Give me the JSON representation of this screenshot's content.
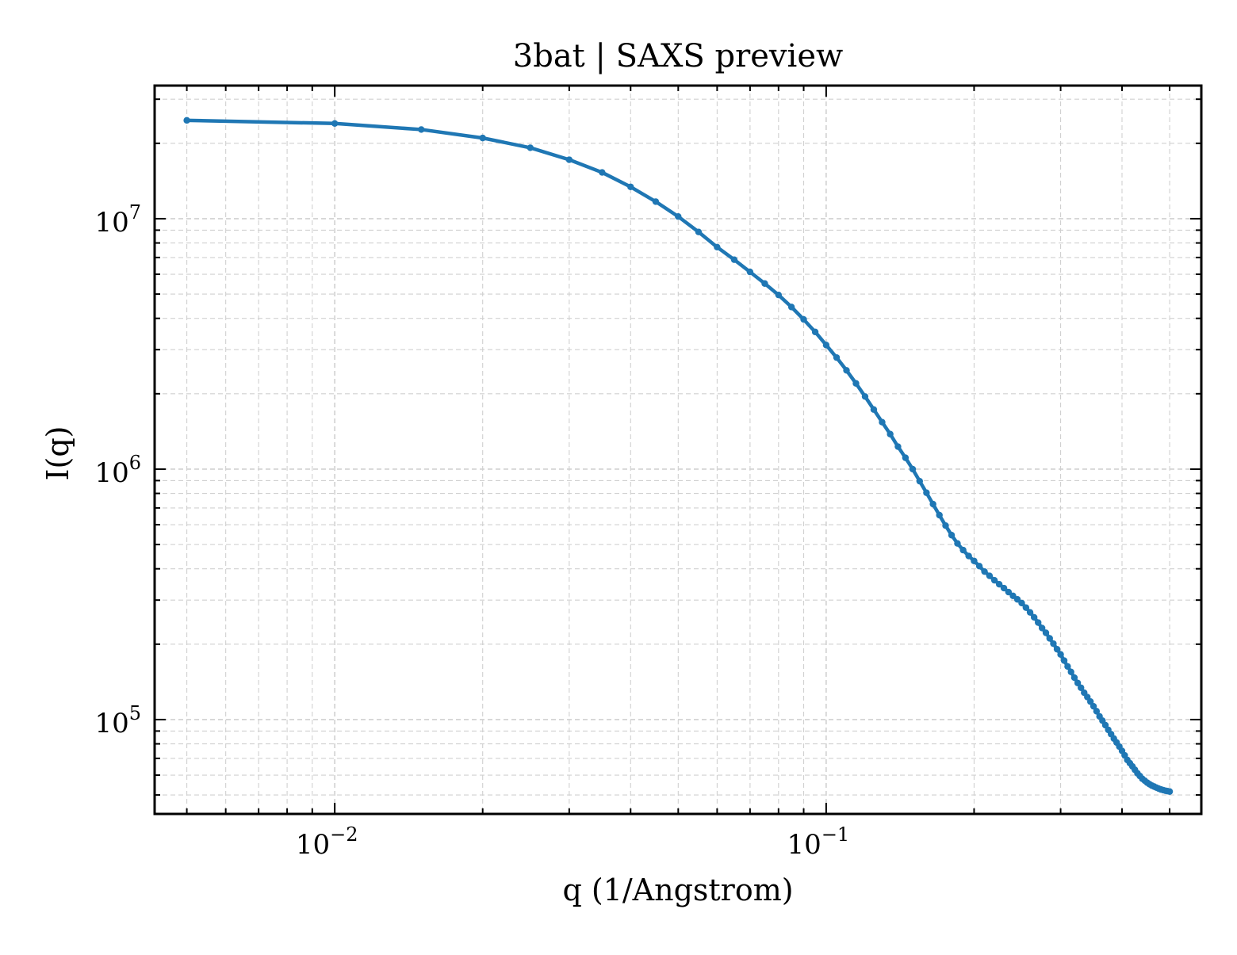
{
  "chart_data": {
    "type": "line",
    "title": "3bat | SAXS preview",
    "xlabel": "q (1/Angstrom)",
    "ylabel": "I(q)",
    "xscale": "log",
    "yscale": "log",
    "xlim": [
      0.0043,
      0.58
    ],
    "ylim": [
      42000,
      34000000
    ],
    "grid": true,
    "x_ticks": [
      {
        "value": 0.01,
        "base": "10",
        "exp": "−2"
      },
      {
        "value": 0.1,
        "base": "10",
        "exp": "−1"
      }
    ],
    "y_ticks": [
      {
        "value": 100000,
        "base": "10",
        "exp": "5"
      },
      {
        "value": 1000000,
        "base": "10",
        "exp": "6"
      },
      {
        "value": 10000000,
        "base": "10",
        "exp": "7"
      }
    ],
    "colors": {
      "series": "#1f77b4",
      "grid": "#d0d0d0",
      "axes": "#000000"
    },
    "series": [
      {
        "x": [
          0.005,
          0.01,
          0.015,
          0.02,
          0.025,
          0.03,
          0.035,
          0.04,
          0.045,
          0.05,
          0.055,
          0.06,
          0.065,
          0.07,
          0.075,
          0.08,
          0.085,
          0.09,
          0.095,
          0.1,
          0.105,
          0.11,
          0.115,
          0.12,
          0.125,
          0.13,
          0.135,
          0.14,
          0.145,
          0.15,
          0.155,
          0.16,
          0.165,
          0.17,
          0.175,
          0.18,
          0.185,
          0.19,
          0.195,
          0.2,
          0.205,
          0.21,
          0.215,
          0.22,
          0.225,
          0.23,
          0.235,
          0.24,
          0.245,
          0.25,
          0.255,
          0.26,
          0.265,
          0.27,
          0.275,
          0.28,
          0.285,
          0.29,
          0.295,
          0.3,
          0.305,
          0.31,
          0.315,
          0.32,
          0.325,
          0.33,
          0.335,
          0.34,
          0.345,
          0.35,
          0.355,
          0.36,
          0.365,
          0.37,
          0.375,
          0.38,
          0.385,
          0.39,
          0.395,
          0.4,
          0.405,
          0.41,
          0.415,
          0.42,
          0.425,
          0.43,
          0.435,
          0.44,
          0.445,
          0.45,
          0.455,
          0.46,
          0.465,
          0.47,
          0.475,
          0.48,
          0.485,
          0.49,
          0.495,
          0.5
        ],
        "y": [
          24700000,
          24000000,
          22700000,
          21000000,
          19200000,
          17200000,
          15300000,
          13400000,
          11700000,
          10200000,
          8850000,
          7700000,
          6860000,
          6130000,
          5510000,
          4960000,
          4440000,
          3960000,
          3530000,
          3130000,
          2790000,
          2480000,
          2200000,
          1950000,
          1730000,
          1540000,
          1380000,
          1230000,
          1110000,
          1000000,
          895000,
          805000,
          725000,
          655000,
          595000,
          545000,
          505000,
          475000,
          450000,
          430000,
          410000,
          390000,
          375000,
          360000,
          347000,
          335000,
          323000,
          312000,
          302000,
          292000,
          280000,
          268000,
          256000,
          244000,
          232000,
          222000,
          211000,
          201000,
          191000,
          182000,
          172000,
          163000,
          155000,
          147000,
          140000,
          134000,
          128000,
          123000,
          118000,
          113000,
          108000,
          103000,
          99000,
          95000,
          91000,
          87500,
          84000,
          81000,
          78000,
          75000,
          72000,
          69000,
          67000,
          65000,
          63000,
          61000,
          59500,
          58000,
          57000,
          56000,
          55200,
          54500,
          54000,
          53500,
          53000,
          52600,
          52300,
          52000,
          51800,
          51600
        ]
      }
    ]
  }
}
